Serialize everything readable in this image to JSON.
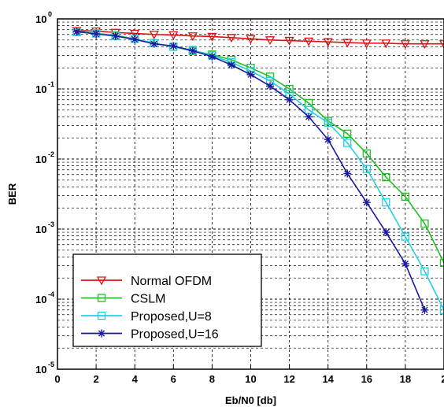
{
  "chart_data": {
    "type": "line",
    "title": "",
    "xlabel": "Eb/N0 [db]",
    "ylabel": "BER",
    "y_scale": "log",
    "xlim": [
      0,
      20
    ],
    "ylim": [
      1e-05,
      1
    ],
    "x_ticks": [
      "0",
      "2",
      "4",
      "6",
      "8",
      "10",
      "12",
      "14",
      "16",
      "18",
      "2"
    ],
    "y_ticks": [
      {
        "base": "10",
        "exp": "0"
      },
      {
        "base": "10",
        "exp": "-1"
      },
      {
        "base": "10",
        "exp": "-2"
      },
      {
        "base": "10",
        "exp": "-3"
      },
      {
        "base": "10",
        "exp": "-4"
      },
      {
        "base": "10",
        "exp": "-5"
      }
    ],
    "grid": true,
    "legend_position": "bottom-left",
    "series": [
      {
        "name": "Normal OFDM",
        "color": "#e01010",
        "marker": "triangle-down",
        "x": [
          1,
          2,
          3,
          4,
          5,
          6,
          7,
          8,
          9,
          10,
          11,
          12,
          13,
          14,
          15,
          16,
          17,
          18,
          19,
          20
        ],
        "y": [
          0.68,
          0.67,
          0.64,
          0.62,
          0.6,
          0.59,
          0.57,
          0.56,
          0.54,
          0.52,
          0.5,
          0.49,
          0.48,
          0.47,
          0.46,
          0.45,
          0.45,
          0.44,
          0.44,
          0.44
        ]
      },
      {
        "name": "CSLM",
        "color": "#20c020",
        "marker": "square",
        "x": [
          1,
          2,
          3,
          4,
          5,
          6,
          7,
          8,
          9,
          10,
          11,
          12,
          13,
          14,
          15,
          16,
          17,
          18,
          19,
          20
        ],
        "y": [
          0.65,
          0.62,
          0.58,
          0.52,
          0.45,
          0.4,
          0.35,
          0.31,
          0.26,
          0.2,
          0.15,
          0.1,
          0.063,
          0.035,
          0.023,
          0.012,
          0.0055,
          0.0029,
          0.0012,
          0.00033
        ]
      },
      {
        "name": "Proposed,U=8",
        "color": "#20d0e8",
        "marker": "square",
        "x": [
          1,
          2,
          3,
          4,
          5,
          6,
          7,
          8,
          9,
          10,
          11,
          12,
          13,
          14,
          15,
          16,
          17,
          18,
          19,
          20
        ],
        "y": [
          0.66,
          0.62,
          0.57,
          0.52,
          0.45,
          0.4,
          0.36,
          0.3,
          0.24,
          0.18,
          0.13,
          0.085,
          0.05,
          0.033,
          0.017,
          0.0072,
          0.0024,
          0.00078,
          0.00025,
          7e-05
        ]
      },
      {
        "name": "Proposed,U=16",
        "color": "#1a1aa0",
        "marker": "star",
        "x": [
          1,
          2,
          3,
          4,
          5,
          6,
          7,
          8,
          9,
          10,
          11,
          12,
          13,
          14,
          15,
          16,
          17,
          18,
          19
        ],
        "y": [
          0.66,
          0.61,
          0.57,
          0.51,
          0.44,
          0.41,
          0.35,
          0.29,
          0.22,
          0.16,
          0.11,
          0.07,
          0.04,
          0.019,
          0.0062,
          0.0024,
          0.0009,
          0.00032,
          7e-05
        ]
      }
    ]
  }
}
